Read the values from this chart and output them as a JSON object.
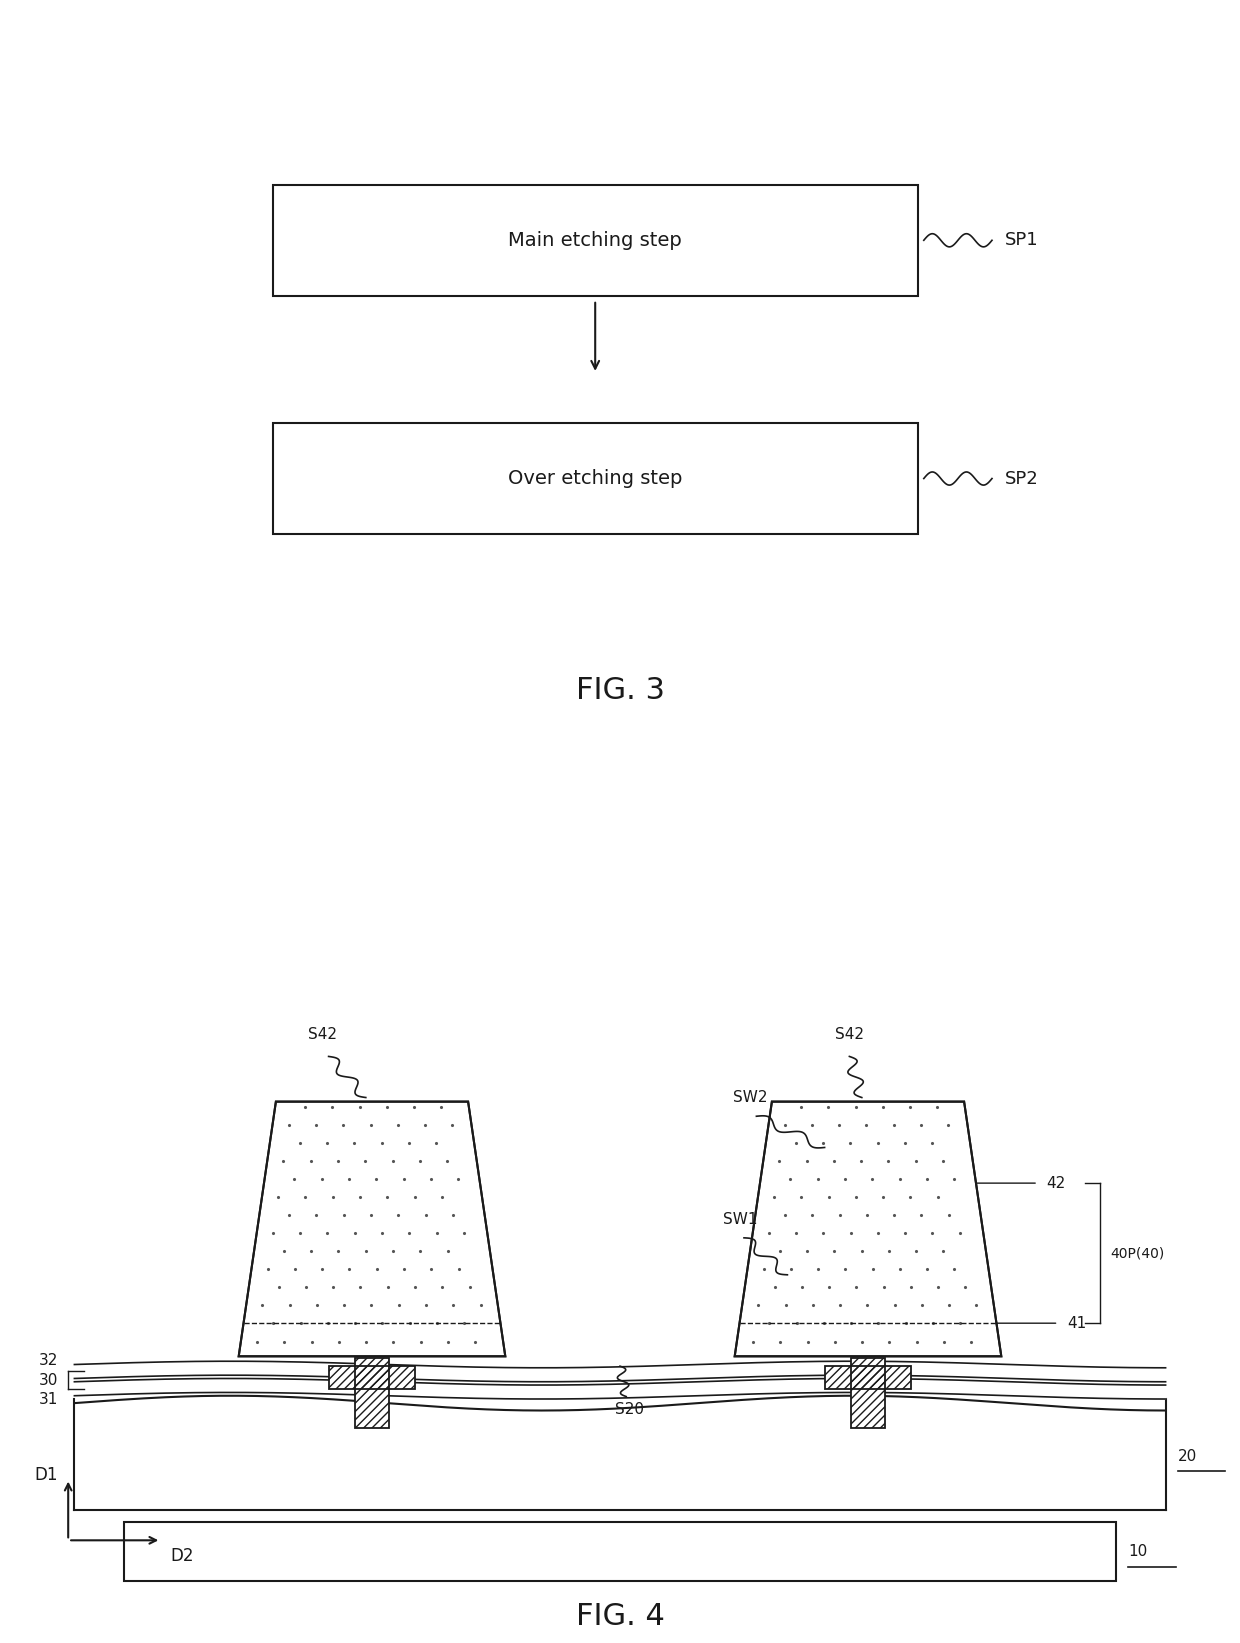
{
  "fig3": {
    "box1_text": "Main etching step",
    "box2_text": "Over etching step",
    "label1": "SP1",
    "label2": "SP2",
    "fig_label": "FIG. 3"
  },
  "fig4": {
    "fig_label": "FIG. 4"
  },
  "background_color": "#ffffff",
  "line_color": "#1a1a1a"
}
